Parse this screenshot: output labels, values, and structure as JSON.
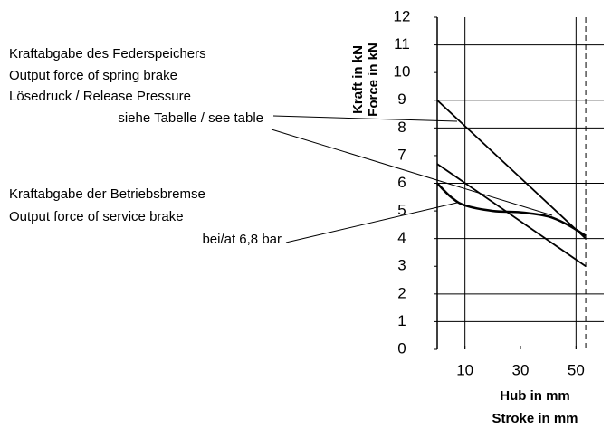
{
  "chart_data": {
    "type": "line",
    "y_label_1": "Kraft in kN",
    "y_label_2": "Force in kN",
    "x_label_1": "Hub in mm",
    "x_label_2": "Stroke in mm",
    "annotations_1": [
      "Kraftabgabe des  Federspeichers",
      "Output force of  spring brake",
      "Lösedruck / Release Pressure",
      "siehe Tabelle / see table"
    ],
    "annotations_2": [
      "Kraftabgabe der  Betriebsbremse",
      "Output force of service brake",
      "bei/at 6,8 bar"
    ],
    "xlim": [
      0,
      60
    ],
    "ylim": [
      0,
      12
    ],
    "xticks": [
      10,
      30,
      50
    ],
    "yticks": [
      0,
      1,
      2,
      3,
      4,
      5,
      6,
      7,
      8,
      9,
      10,
      11,
      12
    ],
    "grid_y": [
      1,
      2,
      4,
      6,
      8,
      9,
      11
    ],
    "grid_x": [
      10,
      50
    ],
    "marker_x": 53.5,
    "series": [
      {
        "color": "#000000",
        "x": [
          0,
          53.5
        ],
        "values": [
          9,
          4
        ]
      },
      {
        "color": "#000000",
        "x": [
          0,
          53.5
        ],
        "values": [
          6.7,
          3
        ]
      },
      {
        "color": "#000000",
        "x": [
          0,
          5,
          10,
          20,
          30,
          40,
          47,
          53.5
        ],
        "values": [
          6,
          5.5,
          5.2,
          5,
          4.95,
          4.8,
          4.5,
          4.1
        ]
      }
    ]
  }
}
